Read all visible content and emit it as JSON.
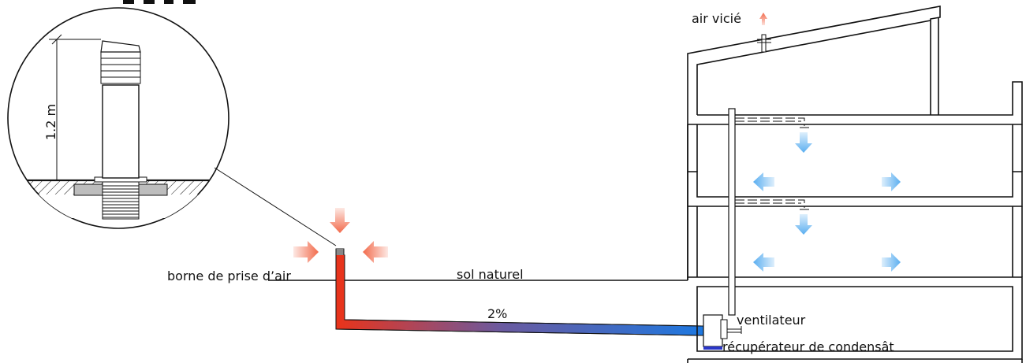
{
  "labels": {
    "exhaust_air": "air vicié",
    "air_intake": "borne de prise d’air",
    "natural_ground": "sol naturel",
    "slope": "2%",
    "fan": "ventilateur",
    "condensate_collector": "récupérateur de condensât",
    "height": "1.2 m"
  },
  "colors": {
    "warm_air": "#f26a4b",
    "cool_air": "#5aaef0",
    "pipe_hot": "#e8341c",
    "pipe_cold": "#1e78e0",
    "condensate": "#2a36c8",
    "line": "#111111"
  }
}
